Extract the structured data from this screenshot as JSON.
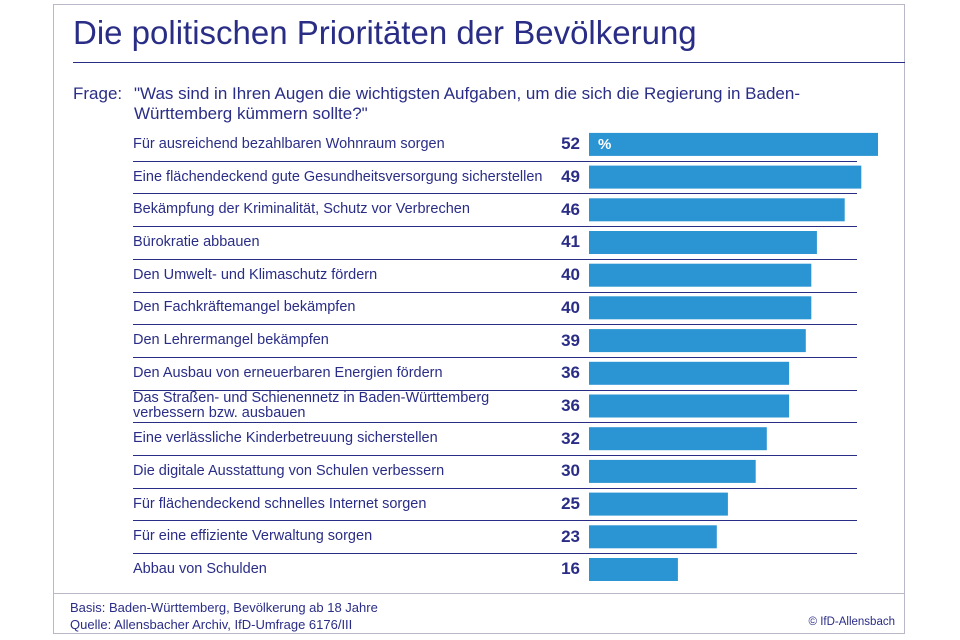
{
  "title": "Die politischen Prioritäten der Bevölkerung",
  "question": {
    "prefix": "Frage:",
    "text": "\"Was sind in Ihren Augen die wichtigsten Aufgaben, um die sich die Regierung in Baden-Württemberg kümmern sollte?\""
  },
  "chart_data": {
    "type": "bar",
    "orientation": "horizontal",
    "unit": "%",
    "bar_color": "#2b94d3",
    "categories": [
      "Für ausreichend bezahlbaren Wohnraum sorgen",
      "Eine flächendeckend gute Gesundheitsversorgung sicherstellen",
      "Bekämpfung der Kriminalität, Schutz vor Verbrechen",
      "Bürokratie abbauen",
      "Den Umwelt- und Klimaschutz fördern",
      "Den Fachkräftemangel bekämpfen",
      "Den Lehrermangel bekämpfen",
      "Den Ausbau von erneuerbaren Energien fördern",
      "Das Straßen- und Schienennetz in Baden-Württemberg verbessern bzw. ausbauen",
      "Eine verlässliche Kinderbetreuung sicherstellen",
      "Die digitale Ausstattung von Schulen verbessern",
      "Für flächendeckend schnelles Internet sorgen",
      "Für eine effiziente Verwaltung sorgen",
      "Abbau von Schulden"
    ],
    "values": [
      52,
      49,
      46,
      41,
      40,
      40,
      39,
      36,
      36,
      32,
      30,
      25,
      23,
      16
    ],
    "xlim": [
      0,
      52
    ]
  },
  "footer": {
    "basis": "Basis: Baden-Württemberg, Bevölkerung ab 18 Jahre",
    "source": "Quelle: Allensbacher Archiv, IfD-Umfrage 6176/III",
    "copyright": "© IfD-Allensbach"
  }
}
